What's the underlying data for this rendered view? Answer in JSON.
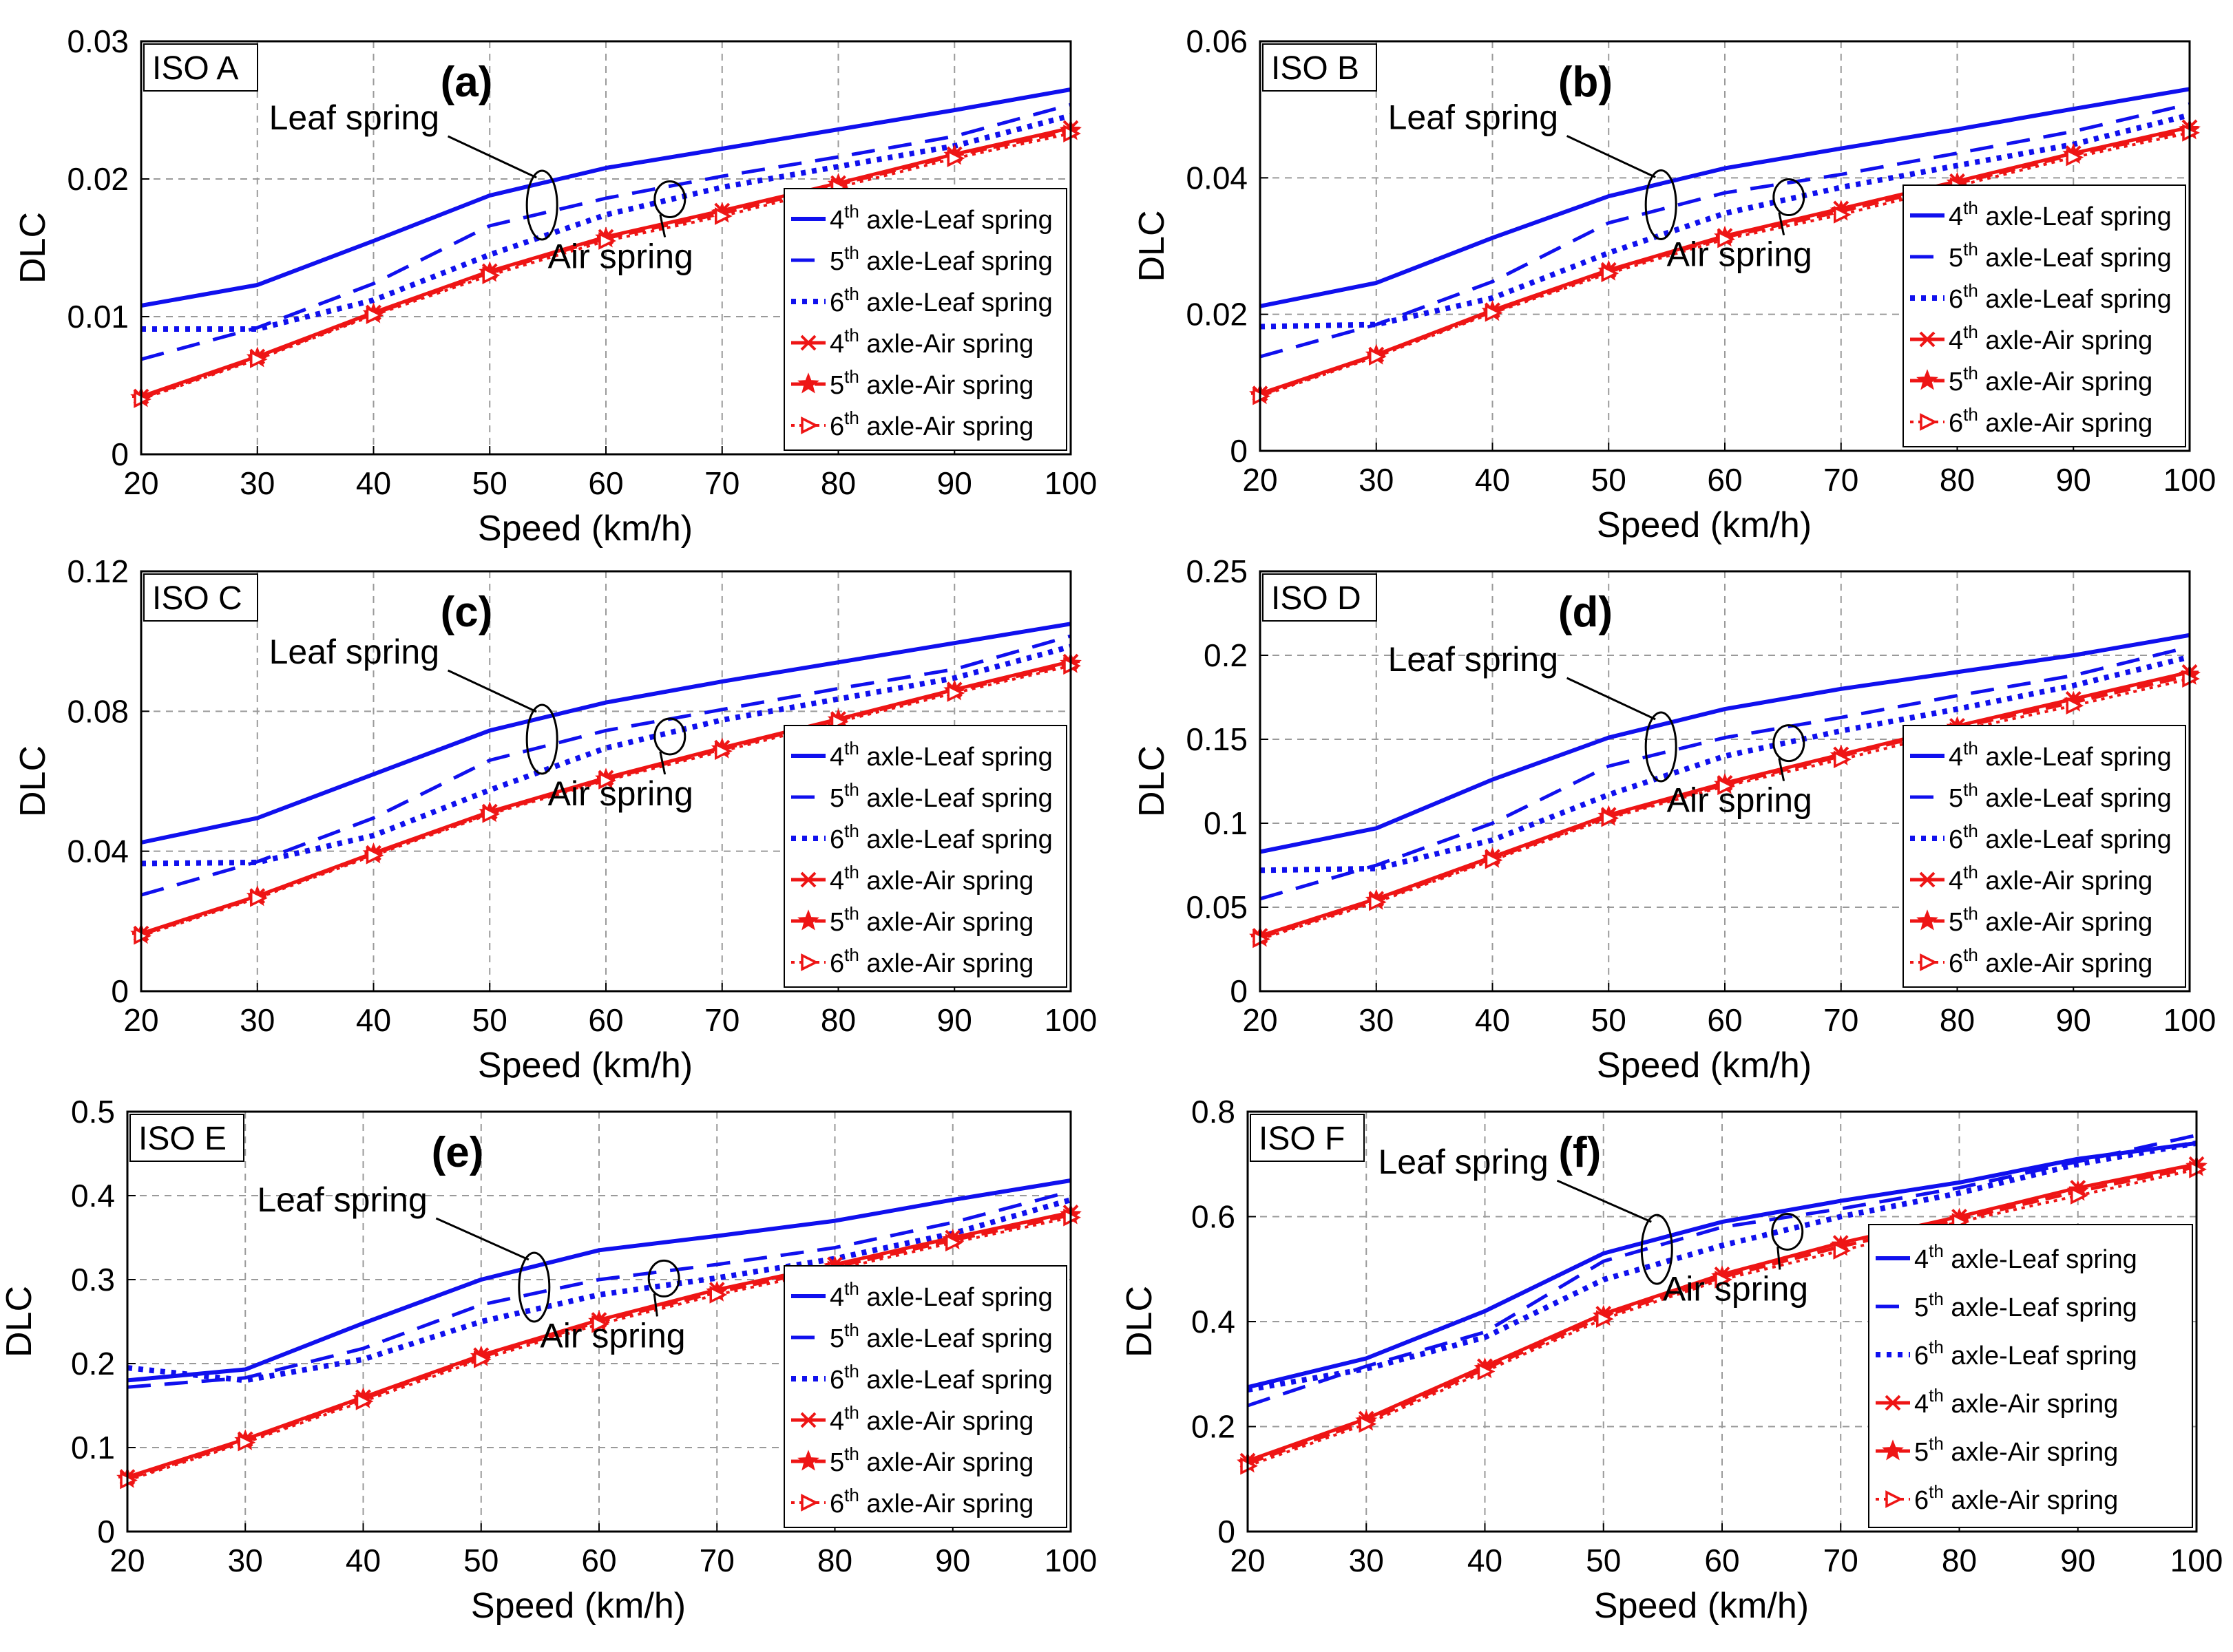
{
  "figure": {
    "description_labels": {
      "xlabel": "Speed (km/h)",
      "ylabel": "DLC"
    }
  },
  "colors": {
    "leaf": "#1010ee",
    "air": "#ee1515",
    "grid": "#9a9a9a"
  },
  "chart_data": [
    {
      "type": "line",
      "panel": "(a)",
      "iso_label": "ISO A",
      "xlabel": "Speed (km/h)",
      "ylabel": "DLC",
      "xlim": [
        20,
        100
      ],
      "ylim": [
        0,
        0.03
      ],
      "x_ticks": [
        "20",
        "30",
        "40",
        "50",
        "60",
        "70",
        "80",
        "90",
        "100"
      ],
      "y_ticks": [
        "0",
        "0.01",
        "0.02",
        "0.03"
      ],
      "annotations": {
        "leaf": "Leaf spring",
        "air": "Air spring"
      },
      "x": [
        20,
        30,
        40,
        50,
        60,
        70,
        80,
        90,
        100
      ],
      "series": [
        {
          "name": "4th axle-Leaf spring",
          "ord": "4",
          "sup": "th",
          "rest": " axle-Leaf spring",
          "values": [
            0.0108,
            0.0123,
            0.0155,
            0.0188,
            0.0208,
            0.0222,
            0.0236,
            0.025,
            0.0265
          ]
        },
        {
          "name": "5th axle-Leaf spring",
          "ord": "5",
          "sup": "th",
          "rest": " axle-Leaf spring",
          "values": [
            0.0069,
            0.0092,
            0.0124,
            0.0166,
            0.0186,
            0.0202,
            0.0216,
            0.0231,
            0.0254
          ]
        },
        {
          "name": "6th axle-Leaf spring",
          "ord": "6",
          "sup": "th",
          "rest": " axle-Leaf spring",
          "values": [
            0.0091,
            0.0091,
            0.0112,
            0.0145,
            0.0174,
            0.0194,
            0.0209,
            0.0224,
            0.0246
          ]
        },
        {
          "name": "4th axle-Air spring",
          "ord": "4",
          "sup": "th",
          "rest": " axle-Air spring",
          "values": [
            0.0042,
            0.0071,
            0.0103,
            0.0133,
            0.0158,
            0.0177,
            0.0197,
            0.0218,
            0.0237
          ]
        },
        {
          "name": "5th axle-Air spring",
          "ord": "5",
          "sup": "th",
          "rest": " axle-Air spring",
          "values": [
            0.0041,
            0.007,
            0.0102,
            0.0132,
            0.0157,
            0.0175,
            0.0196,
            0.0217,
            0.0235
          ]
        },
        {
          "name": "6th axle-Air spring",
          "ord": "6",
          "sup": "th",
          "rest": " axle-Air spring",
          "values": [
            0.004,
            0.0069,
            0.0101,
            0.013,
            0.0155,
            0.0173,
            0.0194,
            0.0215,
            0.0233
          ]
        }
      ]
    },
    {
      "type": "line",
      "panel": "(b)",
      "iso_label": "ISO B",
      "xlabel": "Speed (km/h)",
      "ylabel": "DLC",
      "xlim": [
        20,
        100
      ],
      "ylim": [
        0,
        0.06
      ],
      "x_ticks": [
        "20",
        "30",
        "40",
        "50",
        "60",
        "70",
        "80",
        "90",
        "100"
      ],
      "y_ticks": [
        "0",
        "0.02",
        "0.04",
        "0.06"
      ],
      "annotations": {
        "leaf": "Leaf spring",
        "air": "Air spring"
      },
      "x": [
        20,
        30,
        40,
        50,
        60,
        70,
        80,
        90,
        100
      ],
      "series": [
        {
          "name": "4th axle-Leaf spring",
          "ord": "4",
          "sup": "th",
          "rest": " axle-Leaf spring",
          "values": [
            0.0212,
            0.0246,
            0.0312,
            0.0373,
            0.0414,
            0.0443,
            0.0471,
            0.0501,
            0.053
          ]
        },
        {
          "name": "5th axle-Leaf spring",
          "ord": "5",
          "sup": "th",
          "rest": " axle-Leaf spring",
          "values": [
            0.0138,
            0.0185,
            0.0248,
            0.0334,
            0.0378,
            0.0405,
            0.0436,
            0.0468,
            0.0508
          ]
        },
        {
          "name": "6th axle-Leaf spring",
          "ord": "6",
          "sup": "th",
          "rest": " axle-Leaf spring",
          "values": [
            0.0182,
            0.0185,
            0.0224,
            0.029,
            0.0348,
            0.0386,
            0.0418,
            0.0449,
            0.0492
          ]
        },
        {
          "name": "4th axle-Air spring",
          "ord": "4",
          "sup": "th",
          "rest": " axle-Air spring",
          "values": [
            0.0084,
            0.0141,
            0.0206,
            0.0265,
            0.0315,
            0.0355,
            0.0395,
            0.0436,
            0.0474
          ]
        },
        {
          "name": "5th axle-Air spring",
          "ord": "5",
          "sup": "th",
          "rest": " axle-Air spring",
          "values": [
            0.0082,
            0.014,
            0.0204,
            0.0263,
            0.0313,
            0.0351,
            0.0392,
            0.0434,
            0.047
          ]
        },
        {
          "name": "6th axle-Air spring",
          "ord": "6",
          "sup": "th",
          "rest": " axle-Air spring",
          "values": [
            0.008,
            0.0138,
            0.0202,
            0.026,
            0.031,
            0.0346,
            0.0388,
            0.043,
            0.0466
          ]
        }
      ]
    },
    {
      "type": "line",
      "panel": "(c)",
      "iso_label": "ISO C",
      "xlabel": "Speed (km/h)",
      "ylabel": "DLC",
      "xlim": [
        20,
        100
      ],
      "ylim": [
        0,
        0.12
      ],
      "x_ticks": [
        "20",
        "30",
        "40",
        "50",
        "60",
        "70",
        "80",
        "90",
        "100"
      ],
      "y_ticks": [
        "0",
        "0.04",
        "0.08",
        "0.12"
      ],
      "annotations": {
        "leaf": "Leaf spring",
        "air": "Air spring"
      },
      "x": [
        20,
        30,
        40,
        50,
        60,
        70,
        80,
        90,
        100
      ],
      "series": [
        {
          "name": "4th axle-Leaf spring",
          "ord": "4",
          "sup": "th",
          "rest": " axle-Leaf spring",
          "values": [
            0.0425,
            0.0495,
            0.062,
            0.0745,
            0.0825,
            0.0885,
            0.094,
            0.0995,
            0.105
          ]
        },
        {
          "name": "5th axle-Leaf spring",
          "ord": "5",
          "sup": "th",
          "rest": " axle-Leaf spring",
          "values": [
            0.0275,
            0.037,
            0.0495,
            0.066,
            0.0745,
            0.0805,
            0.0865,
            0.092,
            0.1015
          ]
        },
        {
          "name": "6th axle-Leaf spring",
          "ord": "6",
          "sup": "th",
          "rest": " axle-Leaf spring",
          "values": [
            0.0365,
            0.0368,
            0.0445,
            0.0575,
            0.0695,
            0.0775,
            0.0835,
            0.0895,
            0.0985
          ]
        },
        {
          "name": "4th axle-Air spring",
          "ord": "4",
          "sup": "th",
          "rest": " axle-Air spring",
          "values": [
            0.0165,
            0.0272,
            0.0395,
            0.0513,
            0.061,
            0.0696,
            0.0778,
            0.0862,
            0.0942
          ]
        },
        {
          "name": "5th axle-Air spring",
          "ord": "5",
          "sup": "th",
          "rest": " axle-Air spring",
          "values": [
            0.0162,
            0.027,
            0.0392,
            0.051,
            0.0606,
            0.0692,
            0.0775,
            0.0858,
            0.0936
          ]
        },
        {
          "name": "6th axle-Air spring",
          "ord": "6",
          "sup": "th",
          "rest": " axle-Air spring",
          "values": [
            0.0158,
            0.0266,
            0.0388,
            0.0506,
            0.0602,
            0.0686,
            0.077,
            0.0852,
            0.093
          ]
        }
      ]
    },
    {
      "type": "line",
      "panel": "(d)",
      "iso_label": "ISO D",
      "xlabel": "Speed (km/h)",
      "ylabel": "DLC",
      "xlim": [
        20,
        100
      ],
      "ylim": [
        0,
        0.25
      ],
      "x_ticks": [
        "20",
        "30",
        "40",
        "50",
        "60",
        "70",
        "80",
        "90",
        "100"
      ],
      "y_ticks": [
        "0",
        "0.05",
        "0.1",
        "0.15",
        "0.2",
        "0.25"
      ],
      "annotations": {
        "leaf": "Leaf spring",
        "air": "Air spring"
      },
      "x": [
        20,
        30,
        40,
        50,
        60,
        70,
        80,
        90,
        100
      ],
      "series": [
        {
          "name": "4th axle-Leaf spring",
          "ord": "4",
          "sup": "th",
          "rest": " axle-Leaf spring",
          "values": [
            0.083,
            0.097,
            0.126,
            0.151,
            0.168,
            0.18,
            0.19,
            0.2,
            0.212
          ]
        },
        {
          "name": "5th axle-Leaf spring",
          "ord": "5",
          "sup": "th",
          "rest": " axle-Leaf spring",
          "values": [
            0.055,
            0.075,
            0.1,
            0.134,
            0.151,
            0.163,
            0.176,
            0.188,
            0.205
          ]
        },
        {
          "name": "6th axle-Leaf spring",
          "ord": "6",
          "sup": "th",
          "rest": " axle-Leaf spring",
          "values": [
            0.072,
            0.073,
            0.09,
            0.117,
            0.14,
            0.155,
            0.168,
            0.182,
            0.199
          ]
        },
        {
          "name": "4th axle-Air spring",
          "ord": "4",
          "sup": "th",
          "rest": " axle-Air spring",
          "values": [
            0.033,
            0.055,
            0.08,
            0.105,
            0.124,
            0.141,
            0.158,
            0.174,
            0.19
          ]
        },
        {
          "name": "5th axle-Air spring",
          "ord": "5",
          "sup": "th",
          "rest": " axle-Air spring",
          "values": [
            0.032,
            0.054,
            0.079,
            0.104,
            0.123,
            0.14,
            0.157,
            0.172,
            0.188
          ]
        },
        {
          "name": "6th axle-Air spring",
          "ord": "6",
          "sup": "th",
          "rest": " axle-Air spring",
          "values": [
            0.031,
            0.053,
            0.078,
            0.103,
            0.122,
            0.138,
            0.155,
            0.17,
            0.186
          ]
        }
      ]
    },
    {
      "type": "line",
      "panel": "(e)",
      "iso_label": "ISO E",
      "xlabel": "Speed (km/h)",
      "ylabel": "DLC",
      "xlim": [
        20,
        100
      ],
      "ylim": [
        0,
        0.5
      ],
      "x_ticks": [
        "20",
        "30",
        "40",
        "50",
        "60",
        "70",
        "80",
        "90",
        "100"
      ],
      "y_ticks": [
        "0",
        "0.1",
        "0.2",
        "0.3",
        "0.4",
        "0.5"
      ],
      "annotations": {
        "leaf": "Leaf spring",
        "air": "Air spring"
      },
      "x": [
        20,
        30,
        40,
        50,
        60,
        70,
        80,
        90,
        100
      ],
      "series": [
        {
          "name": "4th axle-Leaf spring",
          "ord": "4",
          "sup": "th",
          "rest": " axle-Leaf spring",
          "values": [
            0.18,
            0.193,
            0.248,
            0.3,
            0.335,
            0.352,
            0.37,
            0.395,
            0.418
          ]
        },
        {
          "name": "5th axle-Leaf spring",
          "ord": "5",
          "sup": "th",
          "rest": " axle-Leaf spring",
          "values": [
            0.172,
            0.183,
            0.218,
            0.27,
            0.3,
            0.318,
            0.338,
            0.368,
            0.405
          ]
        },
        {
          "name": "6th axle-Leaf spring",
          "ord": "6",
          "sup": "th",
          "rest": " axle-Leaf spring",
          "values": [
            0.195,
            0.18,
            0.205,
            0.25,
            0.282,
            0.302,
            0.325,
            0.355,
            0.395
          ]
        },
        {
          "name": "4th axle-Air spring",
          "ord": "4",
          "sup": "th",
          "rest": " axle-Air spring",
          "values": [
            0.065,
            0.11,
            0.16,
            0.21,
            0.252,
            0.288,
            0.318,
            0.35,
            0.38
          ]
        },
        {
          "name": "5th axle-Air spring",
          "ord": "5",
          "sup": "th",
          "rest": " axle-Air spring",
          "values": [
            0.063,
            0.108,
            0.158,
            0.208,
            0.25,
            0.285,
            0.315,
            0.347,
            0.377
          ]
        },
        {
          "name": "6th axle-Air spring",
          "ord": "6",
          "sup": "th",
          "rest": " axle-Air spring",
          "values": [
            0.061,
            0.106,
            0.155,
            0.205,
            0.247,
            0.282,
            0.312,
            0.344,
            0.374
          ]
        }
      ]
    },
    {
      "type": "line",
      "panel": "(f)",
      "iso_label": "ISO F",
      "xlabel": "Speed (km/h)",
      "ylabel": "DLC",
      "xlim": [
        20,
        100
      ],
      "ylim": [
        0,
        0.8
      ],
      "x_ticks": [
        "20",
        "30",
        "40",
        "50",
        "60",
        "70",
        "80",
        "90",
        "100"
      ],
      "y_ticks": [
        "0",
        "0.2",
        "0.4",
        "0.6",
        "0.8"
      ],
      "annotations": {
        "leaf": "Leaf spring",
        "air": "Air spring"
      },
      "x": [
        20,
        30,
        40,
        50,
        60,
        70,
        80,
        90,
        100
      ],
      "series": [
        {
          "name": "4th axle-Leaf spring",
          "ord": "4",
          "sup": "th",
          "rest": " axle-Leaf spring",
          "values": [
            0.275,
            0.33,
            0.42,
            0.53,
            0.59,
            0.63,
            0.665,
            0.71,
            0.74
          ]
        },
        {
          "name": "5th axle-Leaf spring",
          "ord": "5",
          "sup": "th",
          "rest": " axle-Leaf spring",
          "values": [
            0.24,
            0.315,
            0.38,
            0.515,
            0.58,
            0.615,
            0.655,
            0.705,
            0.755
          ]
        },
        {
          "name": "6th axle-Leaf spring",
          "ord": "6",
          "sup": "th",
          "rest": " axle-Leaf spring",
          "values": [
            0.27,
            0.31,
            0.37,
            0.48,
            0.545,
            0.6,
            0.645,
            0.7,
            0.74
          ]
        },
        {
          "name": "4th axle-Air spring",
          "ord": "4",
          "sup": "th",
          "rest": " axle-Air spring",
          "values": [
            0.135,
            0.215,
            0.315,
            0.415,
            0.49,
            0.55,
            0.6,
            0.655,
            0.7
          ]
        },
        {
          "name": "5th axle-Air spring",
          "ord": "5",
          "sup": "th",
          "rest": " axle-Air spring",
          "values": [
            0.13,
            0.21,
            0.31,
            0.41,
            0.485,
            0.543,
            0.595,
            0.648,
            0.695
          ]
        },
        {
          "name": "6th axle-Air spring",
          "ord": "6",
          "sup": "th",
          "rest": " axle-Air spring",
          "values": [
            0.125,
            0.205,
            0.305,
            0.405,
            0.48,
            0.535,
            0.59,
            0.64,
            0.69
          ]
        }
      ]
    }
  ]
}
